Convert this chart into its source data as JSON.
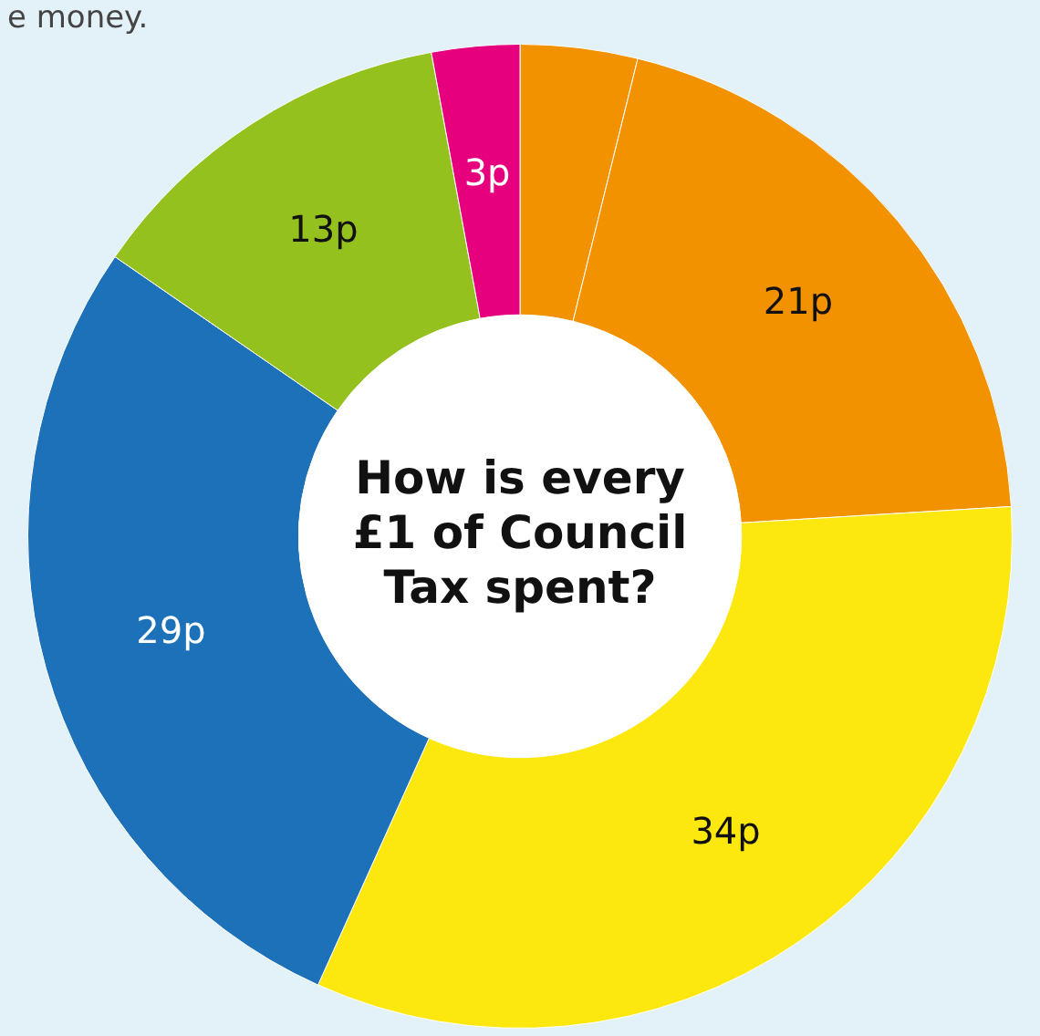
{
  "chart_data": {
    "type": "donut",
    "title": "How is every £1 of Council Tax spent?",
    "categories": [
      null,
      null,
      null,
      null,
      null,
      null
    ],
    "values": [
      4,
      21,
      34,
      29,
      13,
      3
    ],
    "colors": [
      "#f39200",
      "#f39200",
      "#fce80f",
      "#1d71b8",
      "#95c11f",
      "#e6007e"
    ],
    "value_labels": [
      null,
      "21p",
      "34p",
      "29p",
      "13p",
      "3p"
    ],
    "annotations": [
      "e money."
    ],
    "legend": false
  }
}
